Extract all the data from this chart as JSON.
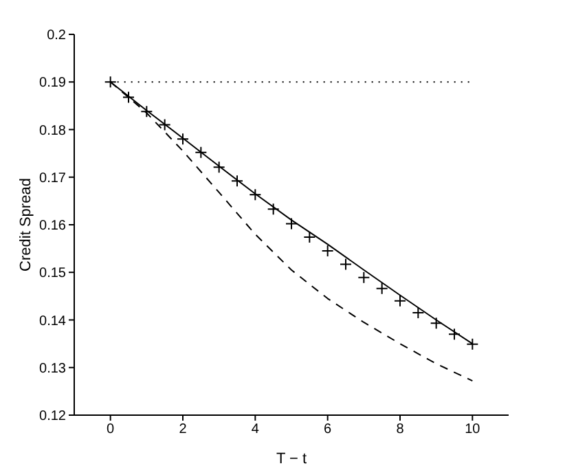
{
  "chart_data": {
    "type": "line",
    "xlabel": "T − t",
    "ylabel": "Credit Spread",
    "xlim": [
      -1,
      11
    ],
    "xticks": [
      0,
      2,
      4,
      6,
      8,
      10
    ],
    "ylim": [
      0.12,
      0.2
    ],
    "yticks": [
      0.12,
      0.13,
      0.14,
      0.15,
      0.16,
      0.17,
      0.18,
      0.19,
      0.2
    ],
    "grid": false,
    "series": [
      {
        "type": "line",
        "color": "#000000",
        "line_style": "dotted",
        "marker": "none",
        "x": [
          0,
          10
        ],
        "values": [
          0.19,
          0.19
        ]
      },
      {
        "type": "line",
        "color": "#000000",
        "line_style": "solid",
        "marker": "none",
        "x": [
          0,
          1,
          2,
          3,
          4,
          5,
          6,
          7,
          8,
          9,
          10
        ],
        "values": [
          0.19,
          0.184,
          0.1782,
          0.1723,
          0.1665,
          0.161,
          0.1559,
          0.1505,
          0.1452,
          0.14,
          0.135
        ]
      },
      {
        "type": "line",
        "color": "#000000",
        "line_style": "dashed",
        "marker": "none",
        "x": [
          0,
          1,
          2,
          3,
          4,
          5,
          6,
          7,
          8,
          9,
          10
        ],
        "values": [
          0.19,
          0.1835,
          0.1755,
          0.1668,
          0.158,
          0.1505,
          0.1445,
          0.1395,
          0.135,
          0.1308,
          0.1272
        ]
      },
      {
        "type": "scatter",
        "color": "#000000",
        "marker": "cross",
        "x": [
          0,
          0.5,
          1,
          1.5,
          2,
          2.5,
          3,
          3.5,
          4,
          4.5,
          5,
          5.5,
          6,
          6.5,
          7,
          7.5,
          8,
          8.5,
          9,
          9.5,
          10
        ],
        "values": [
          0.19,
          0.1868,
          0.1838,
          0.181,
          0.178,
          0.1752,
          0.1721,
          0.1692,
          0.1663,
          0.1633,
          0.1602,
          0.1574,
          0.1545,
          0.1517,
          0.1489,
          0.1466,
          0.144,
          0.1415,
          0.1393,
          0.137,
          0.1349
        ]
      }
    ]
  }
}
